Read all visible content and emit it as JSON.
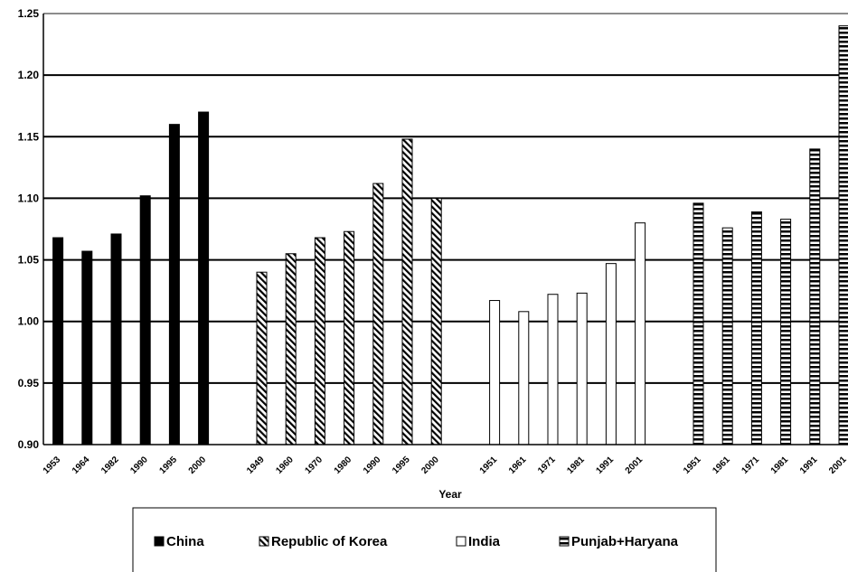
{
  "chart_data": {
    "type": "bar",
    "xlabel": "Year",
    "ylabel": "",
    "ylim": [
      0.9,
      1.25
    ],
    "yticks": [
      "0.90",
      "0.95",
      "1.00",
      "1.05",
      "1.10",
      "1.15",
      "1.20",
      "1.25"
    ],
    "grid": true,
    "legend_position": "bottom",
    "series": [
      {
        "name": "China",
        "pattern": "solid",
        "color": "#000000",
        "categories": [
          "1953",
          "1964",
          "1982",
          "1990",
          "1995",
          "2000"
        ],
        "values": [
          1.068,
          1.057,
          1.071,
          1.102,
          1.16,
          1.17
        ]
      },
      {
        "name": "Republic of Korea",
        "pattern": "diagonal",
        "color": "#000000",
        "categories": [
          "1949",
          "1960",
          "1970",
          "1980",
          "1990",
          "1995",
          "2000"
        ],
        "values": [
          1.04,
          1.055,
          1.068,
          1.073,
          1.112,
          1.148,
          1.1
        ]
      },
      {
        "name": "India",
        "pattern": "hollow",
        "color": "#000000",
        "categories": [
          "1951",
          "1961",
          "1971",
          "1981",
          "1991",
          "2001"
        ],
        "values": [
          1.017,
          1.008,
          1.022,
          1.023,
          1.047,
          1.08
        ]
      },
      {
        "name": "Punjab+Haryana",
        "pattern": "horizontal",
        "color": "#000000",
        "categories": [
          "1951",
          "1961",
          "1971",
          "1981",
          "1991",
          "2001"
        ],
        "values": [
          1.096,
          1.076,
          1.089,
          1.083,
          1.14,
          1.24
        ]
      }
    ]
  }
}
